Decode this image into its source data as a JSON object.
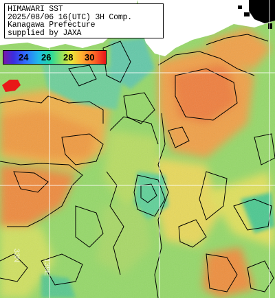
{
  "info": {
    "line1": "HIMAWARI SST",
    "line2": "2025/08/06 16(UTC) 3H Comp.",
    "line3": "Kanagawa Prefecture",
    "line4": "supplied by JAXA"
  },
  "legend": {
    "labels": [
      "24",
      "26",
      "28",
      "30"
    ],
    "unit": "",
    "colors": {
      "cold": "#3a2ee0",
      "cool": "#20b8e8",
      "mid": "#8be060",
      "warm": "#ffb030",
      "hot": "#e8141a"
    }
  },
  "grid_labels": {
    "lon_label": "139E",
    "lat_label": "33N"
  },
  "colors": {
    "land": "#ffffff",
    "cloud": "#000000",
    "sea_green": "#8fd868",
    "sea_yellow": "#e6e65a",
    "sea_orange": "#f2a040",
    "sea_deep_orange": "#ee7a3c",
    "sea_cyan": "#5cc8c8",
    "contour": "#000000",
    "grid": "#ffffff"
  }
}
